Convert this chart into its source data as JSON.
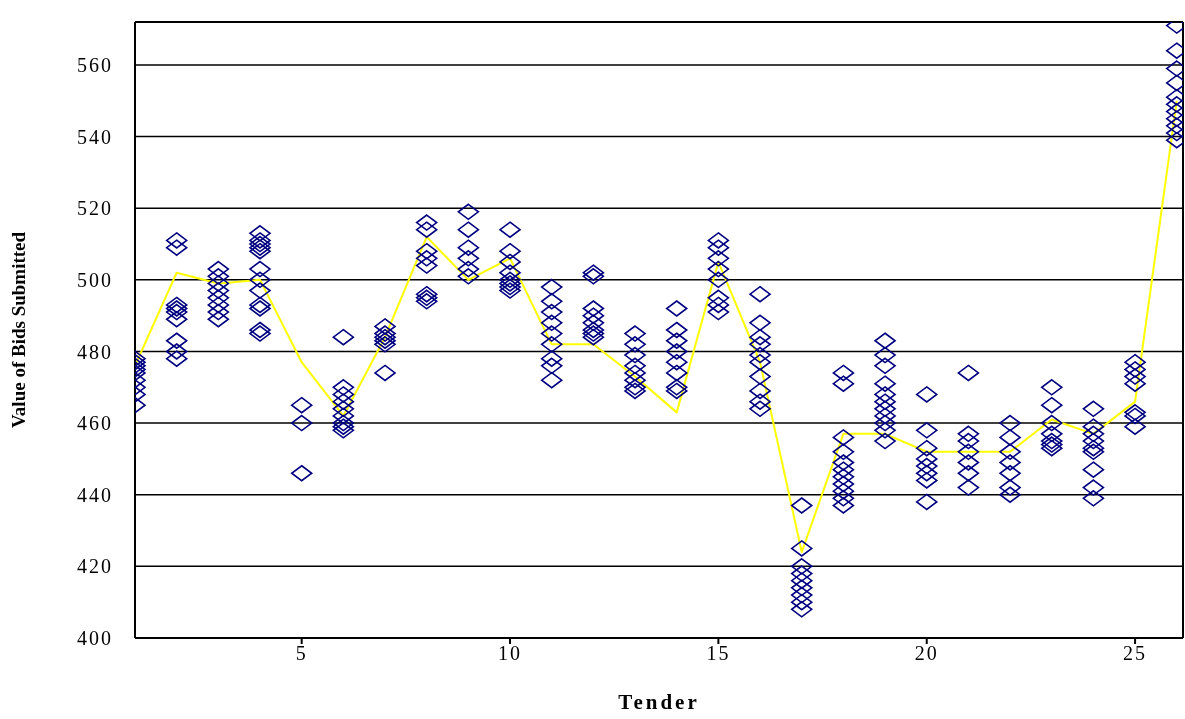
{
  "chart_data": {
    "type": "scatter",
    "xlabel": "Tender",
    "ylabel": "Value of Bids Submitted",
    "xlim": [
      1,
      26.15
    ],
    "xticks": [
      5,
      10,
      15,
      20,
      25
    ],
    "ylim": [
      400,
      572
    ],
    "yticks": [
      400,
      420,
      440,
      460,
      480,
      500,
      520,
      540,
      560
    ],
    "grid": "y",
    "marker": "diamond",
    "series": [
      {
        "color": "#000080",
        "x": [
          1,
          1,
          1,
          1,
          1,
          1,
          1,
          1,
          1,
          2,
          2,
          2,
          2,
          2,
          2,
          2,
          2,
          2,
          3,
          3,
          3,
          3,
          3,
          3,
          3,
          3,
          4,
          4,
          4,
          4,
          4,
          4,
          4,
          4,
          4,
          4,
          4,
          4,
          5,
          5,
          5,
          6,
          6,
          6,
          6,
          6,
          6,
          6,
          6,
          6,
          7,
          7,
          7,
          7,
          7,
          7,
          8,
          8,
          8,
          8,
          8,
          8,
          8,
          8,
          9,
          9,
          9,
          9,
          9,
          9,
          10,
          10,
          10,
          10,
          10,
          10,
          10,
          10,
          11,
          11,
          11,
          11,
          11,
          11,
          11,
          11,
          11,
          12,
          12,
          12,
          12,
          12,
          12,
          12,
          12,
          13,
          13,
          13,
          13,
          13,
          13,
          13,
          13,
          14,
          14,
          14,
          14,
          14,
          14,
          14,
          14,
          15,
          15,
          15,
          15,
          15,
          15,
          15,
          15,
          16,
          16,
          16,
          16,
          16,
          16,
          16,
          16,
          16,
          16,
          17,
          17,
          17,
          17,
          17,
          17,
          17,
          17,
          17,
          18,
          18,
          18,
          18,
          18,
          18,
          18,
          18,
          18,
          18,
          18,
          19,
          19,
          19,
          19,
          19,
          19,
          19,
          19,
          19,
          19,
          19,
          20,
          20,
          20,
          20,
          20,
          20,
          20,
          20,
          21,
          21,
          21,
          21,
          21,
          21,
          21,
          22,
          22,
          22,
          22,
          22,
          22,
          22,
          23,
          23,
          23,
          23,
          23,
          23,
          23,
          24,
          24,
          24,
          24,
          24,
          24,
          24,
          24,
          24,
          25,
          25,
          25,
          25,
          25,
          25,
          25,
          26,
          26,
          26,
          26,
          26,
          26,
          26,
          26,
          26,
          26,
          26
        ],
        "values": [
          465,
          468,
          470,
          472,
          474,
          475,
          476,
          477,
          478,
          511,
          509,
          493,
          492,
          491,
          489,
          483,
          480,
          478,
          503,
          501,
          499,
          497,
          495,
          493,
          491,
          489,
          513,
          511,
          510,
          509,
          508,
          503,
          500,
          497,
          493,
          492,
          486,
          485,
          465,
          460,
          446,
          484,
          470,
          468,
          466,
          464,
          462,
          460,
          459,
          458,
          487,
          485,
          484,
          483,
          482,
          474,
          516,
          514,
          508,
          506,
          504,
          496,
          495,
          494,
          519,
          514,
          509,
          506,
          503,
          501,
          514,
          508,
          505,
          502,
          500,
          499,
          498,
          497,
          498,
          494,
          491,
          488,
          485,
          482,
          478,
          476,
          472,
          502,
          501,
          492,
          490,
          488,
          486,
          485,
          484,
          485,
          482,
          479,
          476,
          474,
          472,
          470,
          469,
          492,
          486,
          483,
          480,
          477,
          474,
          470,
          469,
          511,
          509,
          506,
          503,
          500,
          495,
          493,
          491,
          496,
          488,
          484,
          482,
          479,
          477,
          473,
          469,
          466,
          464,
          437,
          425,
          420,
          418,
          416,
          414,
          412,
          410,
          408,
          474,
          471,
          456,
          452,
          449,
          447,
          445,
          443,
          441,
          439,
          437,
          483,
          479,
          476,
          471,
          468,
          466,
          464,
          462,
          460,
          458,
          455,
          468,
          458,
          453,
          450,
          448,
          446,
          444,
          438,
          474,
          457,
          455,
          452,
          449,
          446,
          442,
          460,
          456,
          452,
          449,
          446,
          442,
          440,
          470,
          465,
          460,
          457,
          455,
          454,
          453,
          464,
          459,
          457,
          455,
          453,
          452,
          447,
          442,
          439,
          477,
          475,
          473,
          471,
          463,
          462,
          459,
          571,
          564,
          559,
          555,
          551,
          549,
          547,
          545,
          543,
          541,
          539
        ]
      },
      {
        "type": "line",
        "color": "#ffff00",
        "marker": "none",
        "x": [
          1,
          2,
          3,
          4,
          5,
          6,
          7,
          8,
          9,
          10,
          11,
          12,
          13,
          14,
          15,
          16,
          17,
          18,
          19,
          20,
          21,
          22,
          23,
          24,
          25,
          26
        ],
        "values": [
          476,
          502,
          499,
          500,
          477,
          462,
          484,
          512,
          500,
          506,
          482,
          482,
          473,
          463,
          505,
          477,
          424,
          457,
          457,
          452,
          452,
          452,
          461,
          457,
          466,
          550
        ]
      }
    ]
  }
}
